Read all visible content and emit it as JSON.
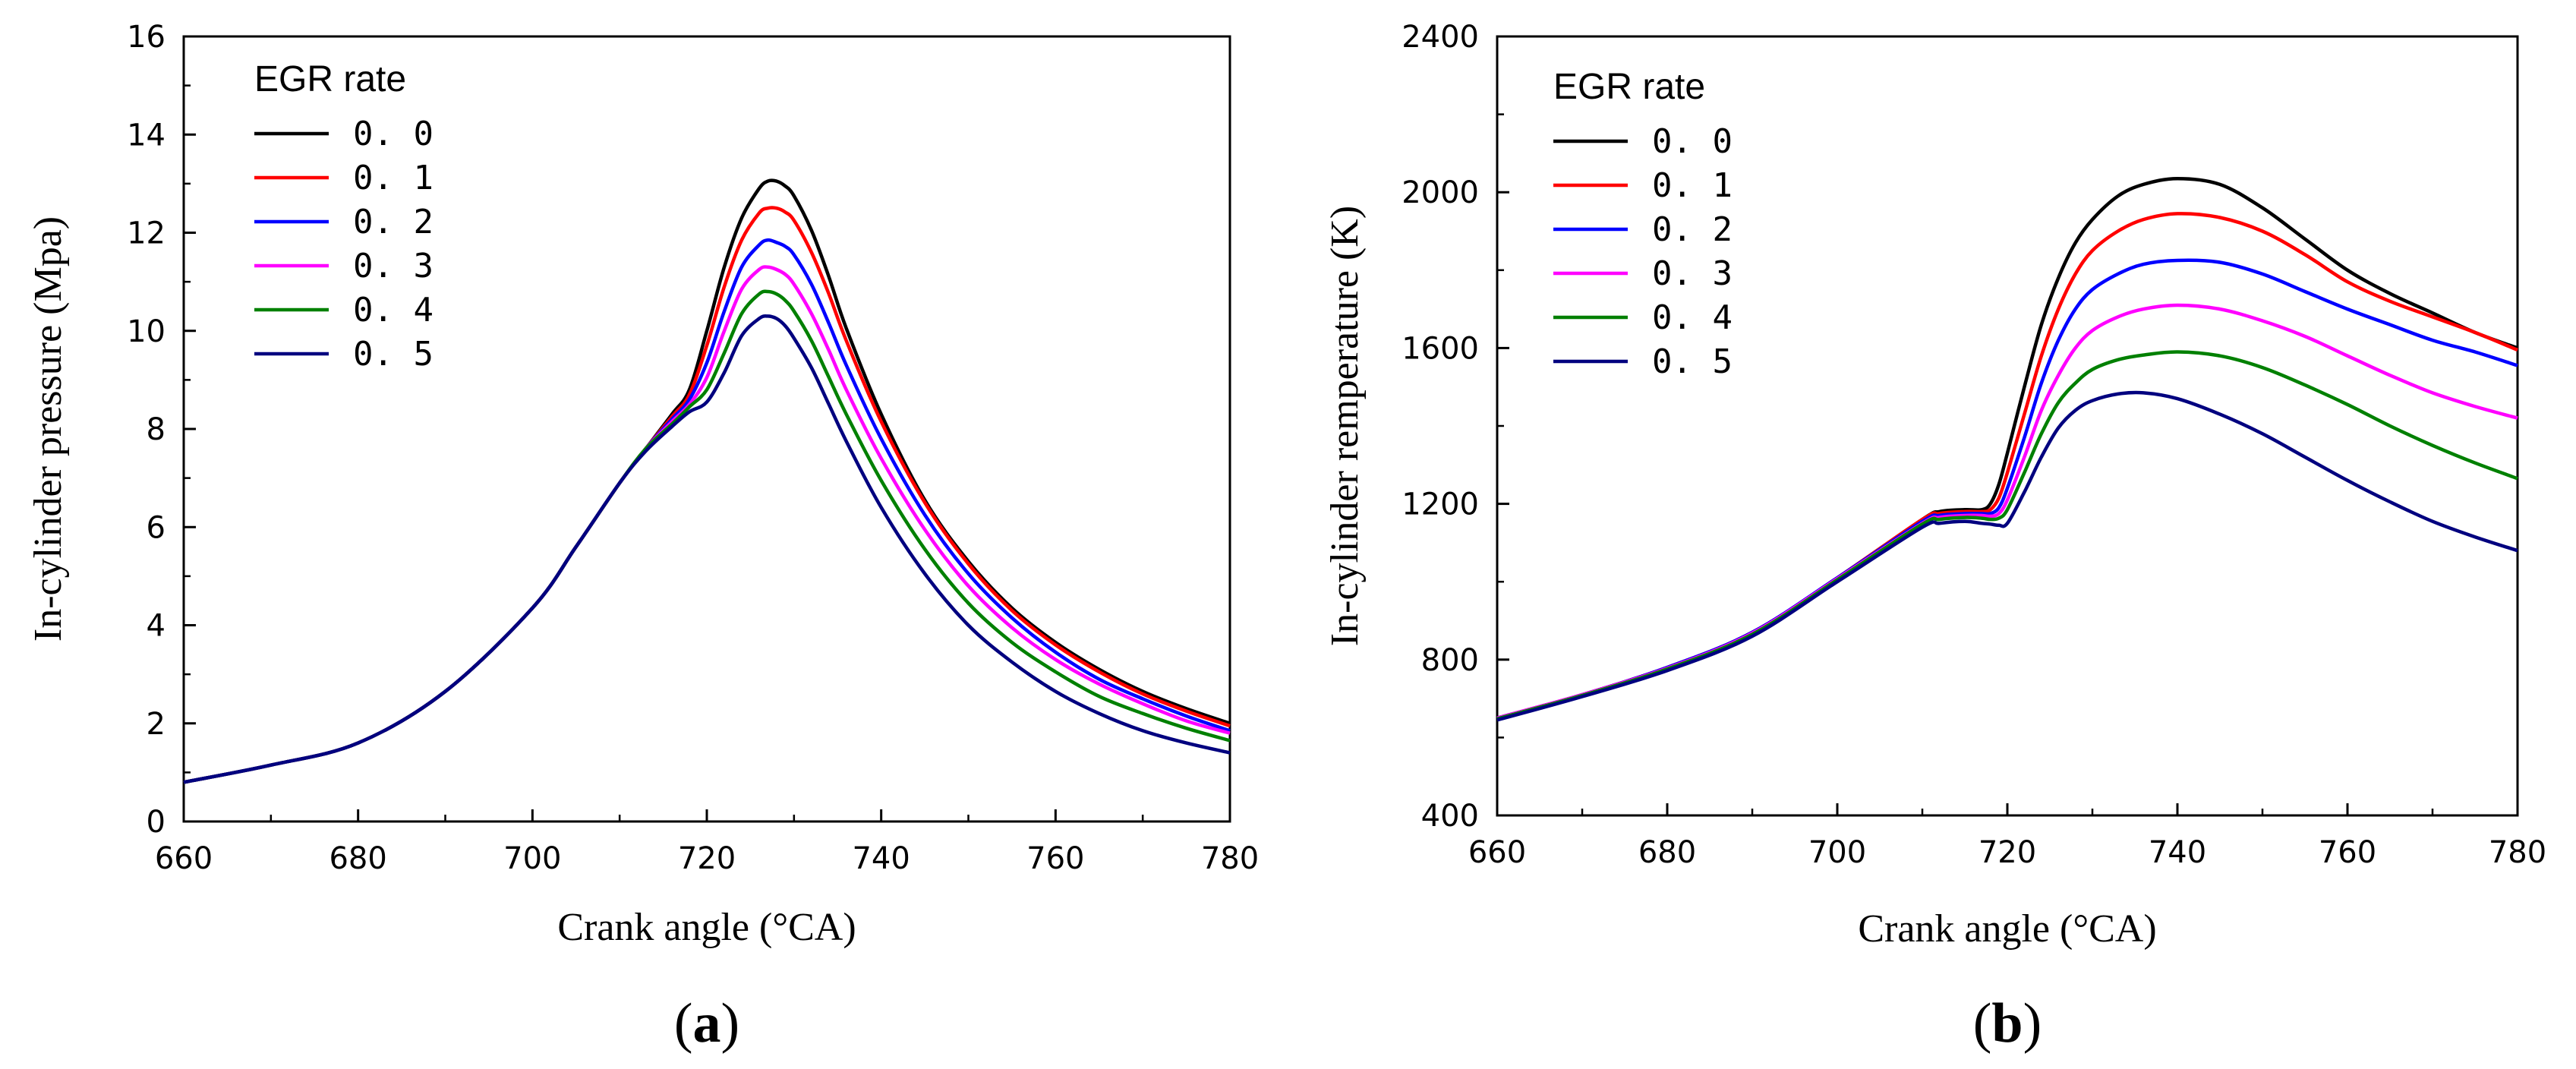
{
  "chart_data": [
    {
      "type": "line",
      "panel_label": {
        "open": "(",
        "letter": "a",
        "close": ")"
      },
      "xlabel": "Crank angle (°CA)",
      "ylabel": "In-cylinder pressure (Mpa)",
      "xlim": [
        660,
        780
      ],
      "ylim": [
        0,
        16
      ],
      "xticks": [
        660,
        680,
        700,
        720,
        740,
        760,
        780
      ],
      "yticks": [
        0,
        2,
        4,
        6,
        8,
        10,
        12,
        14,
        16
      ],
      "grid": false,
      "legend": {
        "title": "EGR rate",
        "position": "top-left"
      },
      "x": [
        660,
        670,
        680,
        690,
        700,
        705,
        710,
        713,
        716,
        718,
        720,
        722,
        724,
        726,
        727,
        728,
        729,
        730,
        732,
        734,
        736,
        740,
        745,
        750,
        755,
        760,
        765,
        770,
        775,
        780
      ],
      "series": [
        {
          "name": "0. 0",
          "color": "#000000",
          "values": [
            0.8,
            1.15,
            1.6,
            2.65,
            4.35,
            5.6,
            6.9,
            7.6,
            8.3,
            8.8,
            10.0,
            11.3,
            12.3,
            12.9,
            13.05,
            13.05,
            12.95,
            12.75,
            12.05,
            11.1,
            10.05,
            8.3,
            6.55,
            5.3,
            4.35,
            3.65,
            3.1,
            2.65,
            2.3,
            2.0
          ]
        },
        {
          "name": "0. 1",
          "color": "#ff0000",
          "values": [
            0.8,
            1.15,
            1.6,
            2.65,
            4.35,
            5.6,
            6.9,
            7.6,
            8.25,
            8.7,
            9.7,
            10.9,
            11.85,
            12.4,
            12.5,
            12.5,
            12.42,
            12.25,
            11.6,
            10.75,
            9.8,
            8.15,
            6.5,
            5.25,
            4.3,
            3.6,
            3.05,
            2.6,
            2.25,
            1.95
          ]
        },
        {
          "name": "0. 2",
          "color": "#0000ff",
          "values": [
            0.8,
            1.15,
            1.6,
            2.65,
            4.35,
            5.6,
            6.9,
            7.6,
            8.2,
            8.6,
            9.35,
            10.4,
            11.3,
            11.75,
            11.85,
            11.8,
            11.72,
            11.55,
            10.95,
            10.15,
            9.3,
            7.8,
            6.25,
            5.05,
            4.15,
            3.45,
            2.9,
            2.5,
            2.15,
            1.85
          ]
        },
        {
          "name": "0. 3",
          "color": "#ff00ff",
          "values": [
            0.8,
            1.15,
            1.6,
            2.65,
            4.35,
            5.6,
            6.9,
            7.6,
            8.15,
            8.5,
            9.05,
            10.0,
            10.85,
            11.25,
            11.3,
            11.25,
            11.15,
            10.95,
            10.35,
            9.6,
            8.8,
            7.4,
            5.95,
            4.8,
            3.95,
            3.3,
            2.8,
            2.4,
            2.05,
            1.8
          ]
        },
        {
          "name": "0. 4",
          "color": "#008000",
          "values": [
            0.8,
            1.15,
            1.6,
            2.65,
            4.35,
            5.6,
            6.9,
            7.6,
            8.1,
            8.45,
            8.8,
            9.55,
            10.35,
            10.75,
            10.8,
            10.75,
            10.62,
            10.4,
            9.8,
            9.05,
            8.3,
            6.95,
            5.55,
            4.45,
            3.65,
            3.05,
            2.55,
            2.2,
            1.9,
            1.65
          ]
        },
        {
          "name": "0. 5",
          "color": "#00007f",
          "values": [
            0.8,
            1.15,
            1.6,
            2.65,
            4.35,
            5.6,
            6.9,
            7.55,
            8.05,
            8.35,
            8.55,
            9.15,
            9.9,
            10.25,
            10.3,
            10.25,
            10.1,
            9.85,
            9.25,
            8.5,
            7.75,
            6.4,
            5.05,
            4.0,
            3.25,
            2.65,
            2.2,
            1.85,
            1.6,
            1.4
          ]
        }
      ]
    },
    {
      "type": "line",
      "panel_label": {
        "open": "(",
        "letter": "b",
        "close": ")"
      },
      "xlabel": "Crank angle (°CA)",
      "ylabel": "In-cylinder remperature (K)",
      "xlim": [
        660,
        780
      ],
      "ylim": [
        400,
        2400
      ],
      "xticks": [
        660,
        680,
        700,
        720,
        740,
        760,
        780
      ],
      "yticks": [
        400,
        800,
        1200,
        1600,
        2000,
        2400
      ],
      "grid": false,
      "legend": {
        "title": "EGR rate",
        "position": "top-left"
      },
      "x": [
        660,
        670,
        680,
        690,
        700,
        710,
        712,
        715,
        717,
        718,
        719,
        720,
        722,
        724,
        726,
        728,
        730,
        733,
        736,
        740,
        745,
        750,
        755,
        760,
        765,
        770,
        775,
        780
      ],
      "series": [
        {
          "name": "0. 0",
          "color": "#000000",
          "values": [
            650,
            710,
            780,
            870,
            1010,
            1160,
            1180,
            1185,
            1185,
            1200,
            1250,
            1330,
            1500,
            1660,
            1780,
            1870,
            1930,
            1990,
            2020,
            2035,
            2020,
            1960,
            1880,
            1800,
            1740,
            1690,
            1640,
            1600
          ]
        },
        {
          "name": "0. 1",
          "color": "#ff0000",
          "values": [
            650,
            710,
            780,
            870,
            1010,
            1160,
            1175,
            1180,
            1180,
            1185,
            1215,
            1280,
            1430,
            1580,
            1700,
            1790,
            1850,
            1900,
            1930,
            1945,
            1935,
            1900,
            1840,
            1770,
            1720,
            1680,
            1640,
            1595
          ]
        },
        {
          "name": "0. 2",
          "color": "#0000ff",
          "values": [
            650,
            710,
            780,
            870,
            1010,
            1155,
            1170,
            1175,
            1175,
            1175,
            1190,
            1240,
            1370,
            1510,
            1620,
            1700,
            1750,
            1790,
            1815,
            1825,
            1820,
            1790,
            1745,
            1700,
            1660,
            1620,
            1590,
            1555
          ]
        },
        {
          "name": "0. 3",
          "color": "#ff00ff",
          "values": [
            650,
            710,
            778,
            868,
            1008,
            1150,
            1165,
            1170,
            1170,
            1168,
            1175,
            1210,
            1320,
            1440,
            1530,
            1600,
            1645,
            1680,
            1700,
            1710,
            1700,
            1670,
            1630,
            1580,
            1530,
            1485,
            1450,
            1420
          ]
        },
        {
          "name": "0. 4",
          "color": "#008000",
          "values": [
            648,
            708,
            776,
            865,
            1005,
            1148,
            1160,
            1165,
            1163,
            1160,
            1163,
            1185,
            1280,
            1380,
            1460,
            1510,
            1545,
            1570,
            1582,
            1590,
            1580,
            1550,
            1505,
            1455,
            1400,
            1350,
            1305,
            1265
          ]
        },
        {
          "name": "0. 5",
          "color": "#00007f",
          "values": [
            645,
            705,
            772,
            860,
            1000,
            1140,
            1150,
            1155,
            1150,
            1148,
            1145,
            1150,
            1230,
            1320,
            1395,
            1440,
            1465,
            1482,
            1485,
            1470,
            1430,
            1380,
            1320,
            1260,
            1205,
            1155,
            1115,
            1080
          ]
        }
      ]
    }
  ]
}
